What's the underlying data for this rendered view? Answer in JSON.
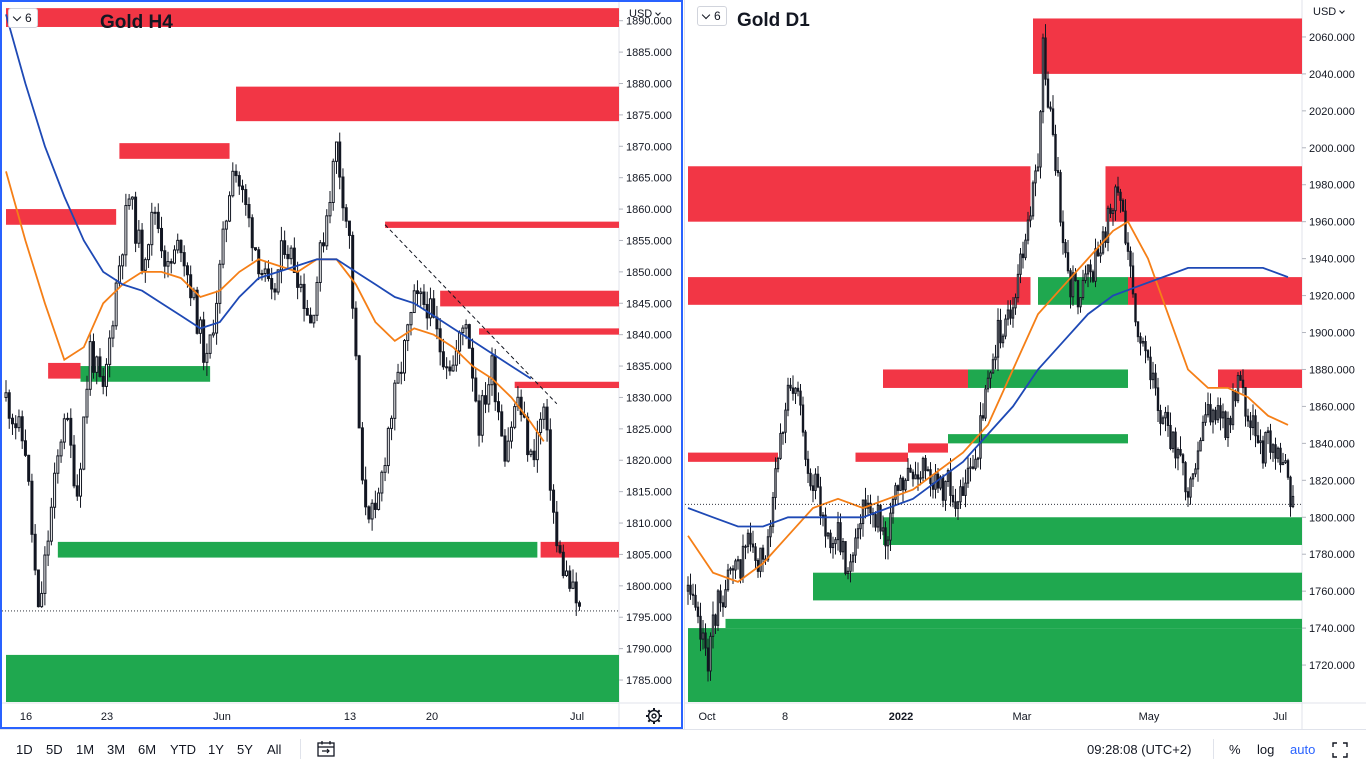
{
  "currency": "USD",
  "toolbar": {
    "ranges": [
      "1D",
      "5D",
      "1M",
      "3M",
      "6M",
      "YTD",
      "1Y",
      "5Y",
      "All"
    ],
    "time": "09:28:08 (UTC+2)",
    "percent": "%",
    "log": "log",
    "auto": "auto"
  },
  "colors": {
    "candle": "#131722",
    "supply": "#f23645",
    "demand": "#1fa84f",
    "ma_fast": "#f57f17",
    "ma_slow": "#1e49b5",
    "focus_border": "#2962ff"
  },
  "chart_data": [
    {
      "type": "candlestick",
      "title": "Gold H4",
      "badge": "6",
      "y_ticks": [
        "1890.000",
        "1885.000",
        "1880.000",
        "1875.000",
        "1870.000",
        "1865.000",
        "1860.000",
        "1855.000",
        "1850.000",
        "1845.000",
        "1840.000",
        "1835.000",
        "1830.000",
        "1825.000",
        "1820.000",
        "1815.000",
        "1810.000",
        "1805.000",
        "1800.000",
        "1795.000",
        "1790.000",
        "1785.000"
      ],
      "x_ticks": [
        "16",
        "23",
        "Jun",
        "13",
        "20",
        "Jul"
      ],
      "ylim": [
        1781.5,
        1892.5
      ],
      "last_price": 1796,
      "close_path": [
        [
          0,
          1830
        ],
        [
          6,
          1822
        ],
        [
          10,
          1795
        ],
        [
          14,
          1812
        ],
        [
          18,
          1828
        ],
        [
          22,
          1815
        ],
        [
          26,
          1838
        ],
        [
          30,
          1830
        ],
        [
          34,
          1848
        ],
        [
          38,
          1862
        ],
        [
          42,
          1852
        ],
        [
          46,
          1860
        ],
        [
          50,
          1850
        ],
        [
          54,
          1855
        ],
        [
          58,
          1845
        ],
        [
          62,
          1835
        ],
        [
          66,
          1850
        ],
        [
          70,
          1868
        ],
        [
          74,
          1860
        ],
        [
          78,
          1852
        ],
        [
          82,
          1845
        ],
        [
          86,
          1855
        ],
        [
          90,
          1850
        ],
        [
          94,
          1842
        ],
        [
          98,
          1856
        ],
        [
          102,
          1870
        ],
        [
          106,
          1855
        ],
        [
          110,
          1815
        ],
        [
          114,
          1810
        ],
        [
          118,
          1825
        ],
        [
          122,
          1835
        ],
        [
          126,
          1845
        ],
        [
          130,
          1845
        ],
        [
          134,
          1838
        ],
        [
          138,
          1835
        ],
        [
          142,
          1843
        ],
        [
          146,
          1826
        ],
        [
          150,
          1835
        ],
        [
          154,
          1822
        ],
        [
          158,
          1830
        ],
        [
          162,
          1820
        ],
        [
          166,
          1828
        ],
        [
          170,
          1806
        ],
        [
          174,
          1800
        ],
        [
          177,
          1796
        ]
      ],
      "zones": [
        {
          "kind": "supply",
          "start": 0,
          "low": 1889,
          "high": 1892
        },
        {
          "kind": "supply",
          "start": 71,
          "low": 1874,
          "high": 1879.5
        },
        {
          "kind": "supply",
          "start": 35,
          "end": 69,
          "low": 1868,
          "high": 1870.5
        },
        {
          "kind": "supply",
          "start": 0,
          "end": 34,
          "low": 1857.5,
          "high": 1860
        },
        {
          "kind": "supply",
          "start": 117,
          "low": 1857,
          "high": 1858
        },
        {
          "kind": "supply",
          "start": 134,
          "low": 1844.5,
          "high": 1847
        },
        {
          "kind": "supply",
          "start": 146,
          "low": 1840,
          "high": 1841
        },
        {
          "kind": "supply",
          "start": 157,
          "low": 1831.5,
          "high": 1832.5
        },
        {
          "kind": "supply",
          "start": 13,
          "end": 23,
          "low": 1833,
          "high": 1835.5
        },
        {
          "kind": "demand",
          "start": 23,
          "end": 63,
          "low": 1832.5,
          "high": 1835
        },
        {
          "kind": "supply",
          "start": 165,
          "low": 1804.5,
          "high": 1807
        },
        {
          "kind": "demand",
          "start": 16,
          "end": 164,
          "low": 1804.5,
          "high": 1807
        },
        {
          "kind": "demand",
          "start": 0,
          "low": 1781.5,
          "high": 1789
        }
      ],
      "trendline": [
        [
          117,
          1857.5
        ],
        [
          170,
          1829
        ]
      ],
      "ma_fast": [
        [
          0,
          1866
        ],
        [
          6,
          1855
        ],
        [
          12,
          1845
        ],
        [
          18,
          1836
        ],
        [
          24,
          1838
        ],
        [
          30,
          1845
        ],
        [
          36,
          1848
        ],
        [
          42,
          1850
        ],
        [
          48,
          1850
        ],
        [
          54,
          1849
        ],
        [
          60,
          1846
        ],
        [
          66,
          1847
        ],
        [
          72,
          1850
        ],
        [
          78,
          1852
        ],
        [
          84,
          1851
        ],
        [
          90,
          1850
        ],
        [
          96,
          1852
        ],
        [
          102,
          1852
        ],
        [
          108,
          1848
        ],
        [
          114,
          1842
        ],
        [
          120,
          1839
        ],
        [
          126,
          1841
        ],
        [
          132,
          1840
        ],
        [
          138,
          1838
        ],
        [
          144,
          1835
        ],
        [
          150,
          1833
        ],
        [
          156,
          1830
        ],
        [
          162,
          1826
        ],
        [
          166,
          1823
        ]
      ],
      "ma_slow": [
        [
          0,
          1891
        ],
        [
          6,
          1880
        ],
        [
          12,
          1870
        ],
        [
          18,
          1862
        ],
        [
          24,
          1855
        ],
        [
          30,
          1850
        ],
        [
          36,
          1848
        ],
        [
          42,
          1847
        ],
        [
          48,
          1845
        ],
        [
          54,
          1843
        ],
        [
          60,
          1841
        ],
        [
          66,
          1842
        ],
        [
          72,
          1846
        ],
        [
          78,
          1849
        ],
        [
          84,
          1850
        ],
        [
          90,
          1851
        ],
        [
          96,
          1852
        ],
        [
          102,
          1852
        ],
        [
          108,
          1850
        ],
        [
          114,
          1848
        ],
        [
          120,
          1846
        ],
        [
          126,
          1845
        ],
        [
          132,
          1843
        ],
        [
          138,
          1841
        ],
        [
          144,
          1839
        ],
        [
          150,
          1837
        ],
        [
          156,
          1835
        ],
        [
          162,
          1833
        ]
      ]
    },
    {
      "type": "candlestick",
      "title": "Gold D1",
      "badge": "6",
      "y_ticks": [
        "2060.000",
        "2040.000",
        "2020.000",
        "2000.000",
        "1980.000",
        "1960.000",
        "1940.000",
        "1920.000",
        "1900.000",
        "1880.000",
        "1860.000",
        "1840.000",
        "1820.000",
        "1800.000",
        "1780.000",
        "1760.000",
        "1740.000",
        "1720.000"
      ],
      "x_ticks": [
        "Oct",
        "8",
        "2022",
        "Mar",
        "May",
        "Jul"
      ],
      "ylim": [
        1700,
        2080
      ],
      "last_price": 1807,
      "close_path": [
        [
          0,
          1760
        ],
        [
          4,
          1740
        ],
        [
          8,
          1725
        ],
        [
          12,
          1755
        ],
        [
          16,
          1765
        ],
        [
          20,
          1770
        ],
        [
          24,
          1790
        ],
        [
          28,
          1770
        ],
        [
          32,
          1790
        ],
        [
          36,
          1840
        ],
        [
          40,
          1865
        ],
        [
          44,
          1865
        ],
        [
          48,
          1830
        ],
        [
          52,
          1810
        ],
        [
          56,
          1790
        ],
        [
          60,
          1790
        ],
        [
          64,
          1770
        ],
        [
          68,
          1800
        ],
        [
          72,
          1810
        ],
        [
          76,
          1800
        ],
        [
          80,
          1790
        ],
        [
          84,
          1815
        ],
        [
          88,
          1820
        ],
        [
          92,
          1825
        ],
        [
          96,
          1830
        ],
        [
          100,
          1815
        ],
        [
          104,
          1820
        ],
        [
          108,
          1805
        ],
        [
          112,
          1820
        ],
        [
          116,
          1840
        ],
        [
          120,
          1870
        ],
        [
          124,
          1900
        ],
        [
          128,
          1905
        ],
        [
          132,
          1930
        ],
        [
          136,
          1960
        ],
        [
          140,
          1990
        ],
        [
          142,
          2055
        ],
        [
          144,
          2030
        ],
        [
          148,
          1980
        ],
        [
          152,
          1930
        ],
        [
          156,
          1920
        ],
        [
          160,
          1930
        ],
        [
          164,
          1940
        ],
        [
          168,
          1960
        ],
        [
          172,
          1975
        ],
        [
          176,
          1950
        ],
        [
          180,
          1900
        ],
        [
          184,
          1880
        ],
        [
          188,
          1860
        ],
        [
          192,
          1850
        ],
        [
          196,
          1830
        ],
        [
          200,
          1815
        ],
        [
          204,
          1840
        ],
        [
          208,
          1860
        ],
        [
          212,
          1855
        ],
        [
          216,
          1850
        ],
        [
          220,
          1870
        ],
        [
          224,
          1860
        ],
        [
          228,
          1835
        ],
        [
          232,
          1840
        ],
        [
          236,
          1830
        ],
        [
          240,
          1820
        ],
        [
          242,
          1807
        ]
      ],
      "zones": [
        {
          "kind": "supply",
          "start": 138,
          "low": 2040,
          "high": 2070
        },
        {
          "kind": "supply",
          "start": 167,
          "low": 1960,
          "high": 1990
        },
        {
          "kind": "supply",
          "start": 0,
          "end": 137,
          "low": 1960,
          "high": 1990
        },
        {
          "kind": "supply",
          "start": 0,
          "end": 137,
          "low": 1915,
          "high": 1930
        },
        {
          "kind": "supply",
          "start": 176,
          "low": 1915,
          "high": 1930
        },
        {
          "kind": "demand",
          "start": 140,
          "end": 176,
          "low": 1915,
          "high": 1930
        },
        {
          "kind": "supply",
          "start": 212,
          "low": 1870,
          "high": 1880
        },
        {
          "kind": "supply",
          "start": 78,
          "end": 112,
          "low": 1870,
          "high": 1880
        },
        {
          "kind": "demand",
          "start": 112,
          "end": 176,
          "low": 1870,
          "high": 1880
        },
        {
          "kind": "supply",
          "start": 0,
          "end": 36,
          "low": 1830,
          "high": 1835
        },
        {
          "kind": "supply",
          "start": 67,
          "end": 88,
          "low": 1830,
          "high": 1835
        },
        {
          "kind": "supply",
          "start": 88,
          "end": 104,
          "low": 1835,
          "high": 1840
        },
        {
          "kind": "demand",
          "start": 104,
          "end": 176,
          "low": 1840,
          "high": 1845
        },
        {
          "kind": "demand",
          "start": 78,
          "low": 1785,
          "high": 1800
        },
        {
          "kind": "demand",
          "start": 50,
          "low": 1755,
          "high": 1770
        },
        {
          "kind": "demand",
          "start": 15,
          "low": 1740,
          "high": 1745
        },
        {
          "kind": "demand",
          "start": 0,
          "low": 1700,
          "high": 1740
        }
      ],
      "ma_fast": [
        [
          0,
          1790
        ],
        [
          10,
          1770
        ],
        [
          20,
          1765
        ],
        [
          30,
          1775
        ],
        [
          40,
          1790
        ],
        [
          50,
          1805
        ],
        [
          60,
          1810
        ],
        [
          70,
          1805
        ],
        [
          80,
          1810
        ],
        [
          90,
          1815
        ],
        [
          100,
          1825
        ],
        [
          110,
          1835
        ],
        [
          120,
          1850
        ],
        [
          130,
          1880
        ],
        [
          140,
          1910
        ],
        [
          150,
          1925
        ],
        [
          160,
          1940
        ],
        [
          170,
          1955
        ],
        [
          176,
          1960
        ],
        [
          184,
          1940
        ],
        [
          192,
          1910
        ],
        [
          200,
          1880
        ],
        [
          208,
          1870
        ],
        [
          216,
          1870
        ],
        [
          224,
          1865
        ],
        [
          232,
          1855
        ],
        [
          240,
          1850
        ]
      ],
      "ma_slow": [
        [
          0,
          1805
        ],
        [
          10,
          1800
        ],
        [
          20,
          1795
        ],
        [
          30,
          1795
        ],
        [
          40,
          1800
        ],
        [
          50,
          1800
        ],
        [
          60,
          1800
        ],
        [
          70,
          1800
        ],
        [
          80,
          1805
        ],
        [
          90,
          1810
        ],
        [
          100,
          1820
        ],
        [
          110,
          1830
        ],
        [
          120,
          1845
        ],
        [
          130,
          1860
        ],
        [
          140,
          1880
        ],
        [
          150,
          1895
        ],
        [
          160,
          1910
        ],
        [
          170,
          1920
        ],
        [
          180,
          1925
        ],
        [
          190,
          1930
        ],
        [
          200,
          1935
        ],
        [
          210,
          1935
        ],
        [
          220,
          1935
        ],
        [
          230,
          1935
        ],
        [
          240,
          1930
        ]
      ]
    }
  ]
}
